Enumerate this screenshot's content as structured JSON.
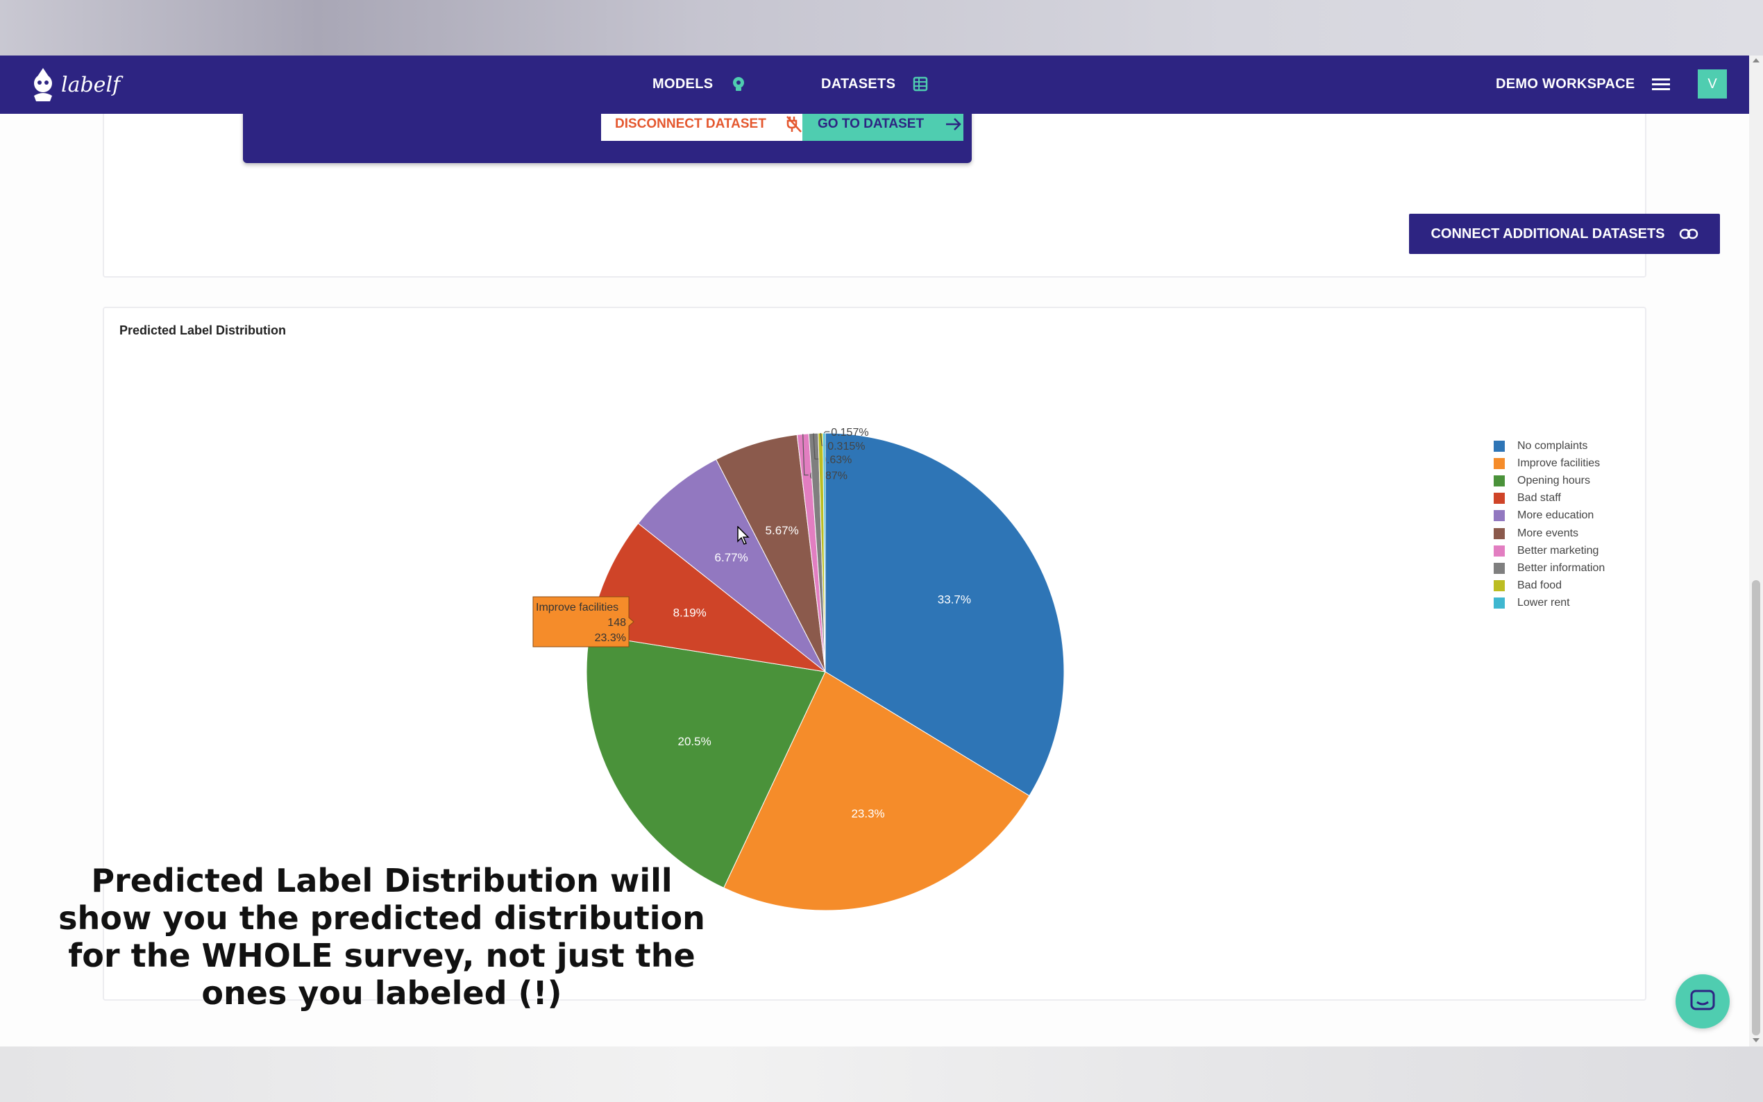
{
  "nav": {
    "logo_text": "labelf",
    "models": "MODELS",
    "datasets": "DATASETS",
    "workspace": "DEMO WORKSPACE",
    "avatar_initial": "V"
  },
  "dataset_panel": {
    "disconnect_label": "DISCONNECT DATASET",
    "goto_label": "GO TO DATASET"
  },
  "connect_label": "CONNECT ADDITIONAL DATASETS",
  "chart_title": "Predicted Label Distribution",
  "caption": "Predicted Label Distribution will show you the predicted distribution for the WHOLE survey, not just the ones you labeled (!)",
  "colors": {
    "brand": "#2d2482",
    "accent": "#4fcdb0",
    "danger": "#e4572e"
  },
  "chart_data": {
    "type": "pie",
    "title": "Predicted Label Distribution",
    "labels": [
      "No complaints",
      "Improve facilities",
      "Opening hours",
      "Bad staff",
      "More education",
      "More events",
      "Better marketing",
      "Better information",
      "Bad food",
      "Lower rent"
    ],
    "values": [
      33.7,
      23.3,
      20.5,
      8.19,
      6.77,
      5.67,
      0.787,
      0.63,
      0.315,
      0.157
    ],
    "value_labels": [
      "33.7%",
      "23.3%",
      "20.5%",
      "8.19%",
      "6.77%",
      "5.67%",
      "0.787%",
      "0.63%",
      "0.315%",
      "0.157%"
    ],
    "colors": [
      "#2e75b6",
      "#f58c2a",
      "#4a923a",
      "#cf4428",
      "#9278c0",
      "#8b5a4c",
      "#e27ec1",
      "#7f7f7f",
      "#bcbd22",
      "#3fb7d0"
    ],
    "legend_position": "right",
    "hover_tooltip": {
      "label": "Improve facilities",
      "count": "148",
      "percent": "23.3%"
    }
  }
}
